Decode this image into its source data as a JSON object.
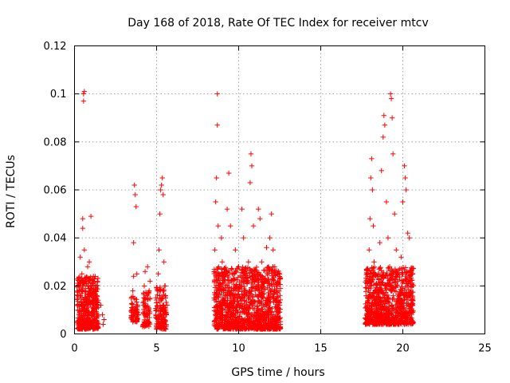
{
  "chart_data": {
    "type": "scatter",
    "title": "Day 168 of 2018, Rate Of TEC Index for receiver mtcv",
    "xlabel": "GPS time / hours",
    "ylabel": "ROTI / TECUs",
    "xlim": [
      0,
      25
    ],
    "ylim": [
      0,
      0.12
    ],
    "xticks": [
      0,
      5,
      10,
      15,
      20,
      25
    ],
    "xtick_labels": [
      "0",
      "5",
      "10",
      "15",
      "20",
      "25"
    ],
    "yticks": [
      0,
      0.02,
      0.04,
      0.06,
      0.08,
      0.1,
      0.12
    ],
    "ytick_labels": [
      "0",
      "0.02",
      "0.04",
      "0.06",
      "0.08",
      "0.1",
      "0.12"
    ],
    "grid": true,
    "marker": "+",
    "color": "#ff0000",
    "series": [
      {
        "name": "ROTI",
        "points": [
          [
            0.2,
            0.012
          ],
          [
            0.25,
            0.02
          ],
          [
            0.3,
            0.008
          ],
          [
            0.35,
            0.032
          ],
          [
            0.4,
            0.015
          ],
          [
            0.45,
            0.025
          ],
          [
            0.5,
            0.044
          ],
          [
            0.55,
            0.097
          ],
          [
            0.55,
            0.1
          ],
          [
            0.6,
            0.101
          ],
          [
            0.5,
            0.048
          ],
          [
            0.6,
            0.035
          ],
          [
            0.65,
            0.018
          ],
          [
            0.7,
            0.022
          ],
          [
            0.75,
            0.01
          ],
          [
            0.8,
            0.028
          ],
          [
            0.85,
            0.013
          ],
          [
            0.9,
            0.03
          ],
          [
            0.95,
            0.016
          ],
          [
            1.0,
            0.049
          ],
          [
            1.05,
            0.02
          ],
          [
            1.1,
            0.009
          ],
          [
            1.15,
            0.024
          ],
          [
            1.2,
            0.014
          ],
          [
            1.25,
            0.006
          ],
          [
            1.3,
            0.018
          ],
          [
            1.35,
            0.011
          ],
          [
            1.4,
            0.022
          ],
          [
            0.3,
            0.004
          ],
          [
            0.7,
            0.005
          ],
          [
            1.6,
            0.012
          ],
          [
            1.7,
            0.008
          ],
          [
            1.75,
            0.004
          ],
          [
            1.8,
            0.006
          ],
          [
            3.5,
            0.01
          ],
          [
            3.55,
            0.018
          ],
          [
            3.6,
            0.038
          ],
          [
            3.65,
            0.062
          ],
          [
            3.7,
            0.058
          ],
          [
            3.75,
            0.053
          ],
          [
            3.8,
            0.025
          ],
          [
            3.85,
            0.012
          ],
          [
            3.9,
            0.008
          ],
          [
            3.6,
            0.024
          ],
          [
            4.2,
            0.012
          ],
          [
            4.25,
            0.02
          ],
          [
            4.3,
            0.026
          ],
          [
            4.35,
            0.008
          ],
          [
            4.4,
            0.016
          ],
          [
            4.45,
            0.028
          ],
          [
            4.5,
            0.005
          ],
          [
            4.55,
            0.018
          ],
          [
            4.6,
            0.022
          ],
          [
            4.35,
            0.004
          ],
          [
            5.0,
            0.01
          ],
          [
            5.05,
            0.018
          ],
          [
            5.1,
            0.025
          ],
          [
            5.15,
            0.035
          ],
          [
            5.2,
            0.05
          ],
          [
            5.25,
            0.06
          ],
          [
            5.3,
            0.062
          ],
          [
            5.35,
            0.065
          ],
          [
            5.4,
            0.058
          ],
          [
            5.45,
            0.03
          ],
          [
            5.5,
            0.02
          ],
          [
            5.55,
            0.015
          ],
          [
            5.6,
            0.008
          ],
          [
            5.3,
            0.004
          ],
          [
            5.65,
            0.012
          ],
          [
            8.5,
            0.015
          ],
          [
            8.55,
            0.035
          ],
          [
            8.6,
            0.055
          ],
          [
            8.65,
            0.065
          ],
          [
            8.7,
            0.1
          ],
          [
            8.7,
            0.087
          ],
          [
            8.75,
            0.045
          ],
          [
            8.8,
            0.025
          ],
          [
            8.85,
            0.012
          ],
          [
            8.9,
            0.02
          ],
          [
            8.95,
            0.04
          ],
          [
            9.0,
            0.03
          ],
          [
            9.1,
            0.018
          ],
          [
            9.2,
            0.008
          ],
          [
            9.3,
            0.052
          ],
          [
            9.4,
            0.067
          ],
          [
            9.5,
            0.045
          ],
          [
            9.6,
            0.025
          ],
          [
            9.7,
            0.015
          ],
          [
            9.8,
            0.035
          ],
          [
            9.9,
            0.01
          ],
          [
            10.0,
            0.028
          ],
          [
            10.1,
            0.02
          ],
          [
            10.2,
            0.052
          ],
          [
            10.3,
            0.04
          ],
          [
            10.4,
            0.016
          ],
          [
            10.5,
            0.012
          ],
          [
            10.6,
            0.03
          ],
          [
            10.7,
            0.063
          ],
          [
            10.75,
            0.075
          ],
          [
            10.8,
            0.07
          ],
          [
            10.9,
            0.045
          ],
          [
            11.0,
            0.018
          ],
          [
            11.1,
            0.025
          ],
          [
            11.2,
            0.052
          ],
          [
            11.3,
            0.048
          ],
          [
            11.4,
            0.03
          ],
          [
            11.5,
            0.012
          ],
          [
            11.6,
            0.022
          ],
          [
            11.7,
            0.036
          ],
          [
            11.8,
            0.015
          ],
          [
            11.9,
            0.04
          ],
          [
            12.0,
            0.05
          ],
          [
            12.1,
            0.035
          ],
          [
            12.2,
            0.028
          ],
          [
            12.3,
            0.018
          ],
          [
            12.4,
            0.01
          ],
          [
            12.5,
            0.012
          ],
          [
            9.0,
            0.004
          ],
          [
            10.5,
            0.004
          ],
          [
            11.5,
            0.006
          ],
          [
            12.2,
            0.004
          ],
          [
            17.8,
            0.008
          ],
          [
            17.85,
            0.015
          ],
          [
            17.9,
            0.022
          ],
          [
            17.95,
            0.035
          ],
          [
            18.0,
            0.048
          ],
          [
            18.05,
            0.065
          ],
          [
            18.1,
            0.073
          ],
          [
            18.15,
            0.06
          ],
          [
            18.2,
            0.045
          ],
          [
            18.25,
            0.03
          ],
          [
            18.3,
            0.018
          ],
          [
            18.4,
            0.012
          ],
          [
            18.5,
            0.025
          ],
          [
            18.6,
            0.038
          ],
          [
            18.7,
            0.068
          ],
          [
            18.8,
            0.082
          ],
          [
            18.85,
            0.091
          ],
          [
            18.9,
            0.087
          ],
          [
            19.0,
            0.055
          ],
          [
            19.1,
            0.04
          ],
          [
            19.2,
            0.028
          ],
          [
            19.25,
            0.1
          ],
          [
            19.3,
            0.098
          ],
          [
            19.35,
            0.09
          ],
          [
            19.4,
            0.075
          ],
          [
            19.5,
            0.05
          ],
          [
            19.6,
            0.035
          ],
          [
            19.7,
            0.022
          ],
          [
            19.8,
            0.015
          ],
          [
            19.9,
            0.032
          ],
          [
            20.0,
            0.055
          ],
          [
            20.1,
            0.07
          ],
          [
            20.15,
            0.065
          ],
          [
            20.2,
            0.06
          ],
          [
            20.3,
            0.042
          ],
          [
            20.4,
            0.04
          ],
          [
            20.5,
            0.02
          ],
          [
            20.6,
            0.012
          ],
          [
            18.5,
            0.005
          ],
          [
            19.5,
            0.004
          ],
          [
            20.5,
            0.006
          ]
        ]
      }
    ],
    "bands": [
      {
        "x0": 0.15,
        "x1": 1.45,
        "ymin": 0.002,
        "ymax": 0.024,
        "n": 420
      },
      {
        "x0": 3.45,
        "x1": 3.85,
        "ymin": 0.005,
        "ymax": 0.016,
        "n": 60
      },
      {
        "x0": 4.15,
        "x1": 4.6,
        "ymin": 0.003,
        "ymax": 0.018,
        "n": 80
      },
      {
        "x0": 4.95,
        "x1": 5.6,
        "ymin": 0.002,
        "ymax": 0.02,
        "n": 140
      },
      {
        "x0": 8.5,
        "x1": 12.55,
        "ymin": 0.002,
        "ymax": 0.028,
        "n": 1200
      },
      {
        "x0": 17.7,
        "x1": 20.65,
        "ymin": 0.004,
        "ymax": 0.028,
        "n": 900
      }
    ]
  }
}
